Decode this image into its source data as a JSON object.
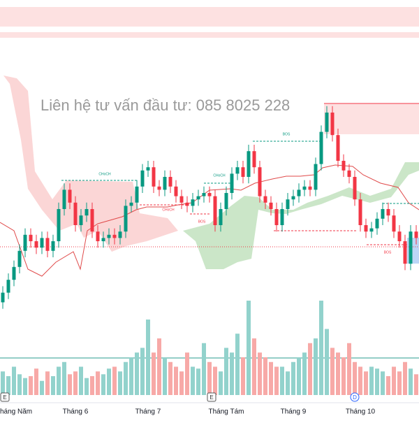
{
  "chart_data": {
    "type": "candlestick",
    "watermark": "Liên hệ tư vấn đầu tư:  085 8025 228",
    "categories": [
      null,
      null,
      "Tháng Năm",
      null,
      null,
      null,
      null,
      null,
      null,
      null,
      null,
      null,
      null,
      "Tháng 6",
      null,
      null,
      null,
      null,
      null,
      null,
      null,
      null,
      null,
      null,
      null,
      null,
      "Tháng 7",
      null,
      null,
      null,
      null,
      null,
      null,
      null,
      null,
      null,
      null,
      null,
      null,
      null,
      "Tháng Tám",
      null,
      null,
      null,
      null,
      null,
      null,
      null,
      null,
      null,
      null,
      null,
      "Tháng 9",
      null,
      null,
      null,
      null,
      null,
      null,
      null,
      null,
      null,
      null,
      null,
      "Tháng 10",
      null,
      null,
      null,
      null,
      null,
      null,
      null,
      null,
      null,
      null
    ],
    "ohlc": [
      [
        6,
        11,
        4,
        9
      ],
      [
        9,
        15,
        7,
        13
      ],
      [
        13,
        19,
        11,
        17
      ],
      [
        17,
        24,
        15,
        22
      ],
      [
        22,
        29,
        20,
        27
      ],
      [
        27,
        29,
        23,
        25
      ],
      [
        25,
        27,
        21,
        23
      ],
      [
        23,
        28,
        21,
        26
      ],
      [
        26,
        28,
        20,
        22
      ],
      [
        22,
        27,
        20,
        25
      ],
      [
        25,
        37,
        23,
        35
      ],
      [
        35,
        43,
        33,
        41
      ],
      [
        41,
        43,
        35,
        37
      ],
      [
        37,
        39,
        28,
        30
      ],
      [
        30,
        35,
        28,
        33
      ],
      [
        33,
        37,
        31,
        35
      ],
      [
        35,
        37,
        26,
        28
      ],
      [
        28,
        30,
        23,
        25
      ],
      [
        25,
        28,
        23,
        26
      ],
      [
        26,
        29,
        24,
        27
      ],
      [
        27,
        29,
        24,
        26
      ],
      [
        26,
        30,
        24,
        28
      ],
      [
        28,
        38,
        26,
        36
      ],
      [
        36,
        39,
        34,
        37
      ],
      [
        37,
        44,
        35,
        42
      ],
      [
        42,
        49,
        40,
        47
      ],
      [
        47,
        50,
        45,
        48
      ],
      [
        48,
        50,
        40,
        42
      ],
      [
        42,
        44,
        39,
        41
      ],
      [
        41,
        47,
        39,
        45
      ],
      [
        45,
        47,
        40,
        42
      ],
      [
        42,
        44,
        37,
        39
      ],
      [
        39,
        41,
        35,
        37
      ],
      [
        37,
        39,
        34,
        36
      ],
      [
        36,
        40,
        34,
        38
      ],
      [
        38,
        41,
        36,
        39
      ],
      [
        39,
        42,
        37,
        40
      ],
      [
        40,
        42,
        37,
        39
      ],
      [
        39,
        41,
        28,
        30
      ],
      [
        30,
        37,
        28,
        35
      ],
      [
        35,
        42,
        33,
        40
      ],
      [
        40,
        48,
        38,
        46
      ],
      [
        46,
        50,
        44,
        48
      ],
      [
        48,
        50,
        43,
        45
      ],
      [
        45,
        55,
        43,
        53
      ],
      [
        53,
        55,
        46,
        48
      ],
      [
        48,
        50,
        37,
        39
      ],
      [
        39,
        41,
        35,
        37
      ],
      [
        37,
        39,
        33,
        35
      ],
      [
        35,
        37,
        28,
        30
      ],
      [
        30,
        37,
        28,
        35
      ],
      [
        35,
        40,
        33,
        38
      ],
      [
        38,
        41,
        36,
        39
      ],
      [
        39,
        43,
        37,
        41
      ],
      [
        41,
        44,
        39,
        42
      ],
      [
        42,
        44,
        39,
        41
      ],
      [
        41,
        51,
        39,
        49
      ],
      [
        49,
        61,
        47,
        59
      ],
      [
        59,
        67,
        57,
        65
      ],
      [
        65,
        67,
        56,
        58
      ],
      [
        58,
        60,
        48,
        50
      ],
      [
        50,
        52,
        45,
        47
      ],
      [
        47,
        49,
        43,
        45
      ],
      [
        45,
        47,
        36,
        38
      ],
      [
        38,
        40,
        28,
        30
      ],
      [
        30,
        32,
        26,
        28
      ],
      [
        28,
        31,
        26,
        29
      ],
      [
        29,
        34,
        27,
        32
      ],
      [
        32,
        37,
        30,
        35
      ],
      [
        35,
        37,
        31,
        33
      ],
      [
        33,
        35,
        26,
        28
      ],
      [
        28,
        30,
        23,
        25
      ],
      [
        25,
        27,
        16,
        18
      ],
      [
        18,
        30,
        16,
        28
      ],
      [
        28,
        30,
        24,
        26
      ]
    ],
    "volume": [
      25,
      20,
      30,
      22,
      18,
      20,
      28,
      15,
      25,
      20,
      30,
      35,
      22,
      25,
      30,
      18,
      20,
      25,
      22,
      28,
      30,
      25,
      35,
      40,
      45,
      50,
      80,
      45,
      60,
      40,
      35,
      30,
      25,
      45,
      30,
      28,
      55,
      35,
      30,
      25,
      50,
      45,
      65,
      40,
      100,
      60,
      45,
      40,
      35,
      30,
      30,
      25,
      35,
      40,
      45,
      55,
      60,
      100,
      70,
      50,
      45,
      40,
      55,
      35,
      30,
      25,
      30,
      28,
      25,
      20,
      30,
      25,
      35,
      28,
      22
    ],
    "ylim": [
      0,
      100
    ],
    "volume_lim": [
      0,
      100
    ],
    "up_color": "#089981",
    "down_color": "#f23645",
    "volume_up_color": "#92d2cc",
    "volume_down_color": "#f7a9a7",
    "annotations": [
      {
        "label": "CHoCH"
      },
      {
        "label": "CHoCH"
      },
      {
        "label": "CHoCH"
      },
      {
        "label": "BOS"
      },
      {
        "label": "BOS"
      },
      {
        "label": "BOS"
      }
    ],
    "markers": [
      "E",
      "E",
      "D"
    ]
  }
}
